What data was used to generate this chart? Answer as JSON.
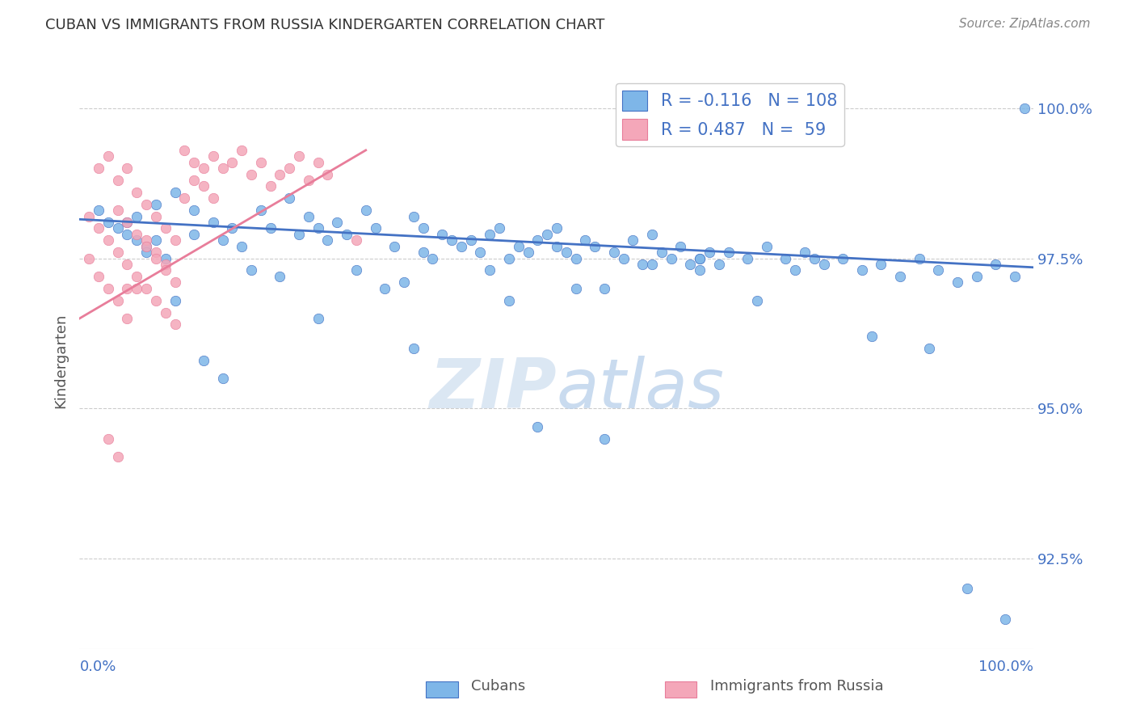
{
  "title": "CUBAN VS IMMIGRANTS FROM RUSSIA KINDERGARTEN CORRELATION CHART",
  "source": "Source: ZipAtlas.com",
  "ylabel": "Kindergarten",
  "yticks": [
    92.5,
    95.0,
    97.5,
    100.0
  ],
  "ytick_labels": [
    "92.5%",
    "95.0%",
    "97.5%",
    "100.0%"
  ],
  "xmin": 0.0,
  "xmax": 1.0,
  "ymin": 91.0,
  "ymax": 100.6,
  "blue_color": "#7EB6E8",
  "pink_color": "#F4A7B9",
  "blue_line_color": "#4472C4",
  "pink_line_color": "#E87D9A",
  "legend_blue_r": "-0.116",
  "legend_blue_n": "108",
  "legend_pink_r": "0.487",
  "legend_pink_n": "59",
  "blue_scatter_x": [
    0.02,
    0.03,
    0.04,
    0.05,
    0.06,
    0.07,
    0.08,
    0.06,
    0.07,
    0.05,
    0.08,
    0.09,
    0.1,
    0.12,
    0.12,
    0.14,
    0.15,
    0.16,
    0.17,
    0.19,
    0.2,
    0.22,
    0.23,
    0.24,
    0.25,
    0.26,
    0.27,
    0.28,
    0.3,
    0.31,
    0.33,
    0.35,
    0.36,
    0.36,
    0.38,
    0.39,
    0.4,
    0.41,
    0.42,
    0.43,
    0.44,
    0.45,
    0.46,
    0.47,
    0.48,
    0.49,
    0.5,
    0.5,
    0.51,
    0.52,
    0.53,
    0.54,
    0.55,
    0.56,
    0.57,
    0.58,
    0.59,
    0.6,
    0.61,
    0.62,
    0.63,
    0.64,
    0.65,
    0.66,
    0.67,
    0.68,
    0.7,
    0.72,
    0.74,
    0.75,
    0.76,
    0.78,
    0.8,
    0.82,
    0.84,
    0.86,
    0.88,
    0.9,
    0.92,
    0.94,
    0.96,
    0.98,
    0.99,
    0.1,
    0.13,
    0.18,
    0.21,
    0.29,
    0.32,
    0.34,
    0.37,
    0.43,
    0.48,
    0.52,
    0.6,
    0.65,
    0.71,
    0.77,
    0.83,
    0.89,
    0.93,
    0.97,
    0.15,
    0.25,
    0.35,
    0.45,
    0.55,
    0.65
  ],
  "blue_scatter_y": [
    98.3,
    98.1,
    98.0,
    97.9,
    97.8,
    97.7,
    97.8,
    98.2,
    97.6,
    98.1,
    98.4,
    97.5,
    98.6,
    98.3,
    97.9,
    98.1,
    97.8,
    98.0,
    97.7,
    98.3,
    98.0,
    98.5,
    97.9,
    98.2,
    98.0,
    97.8,
    98.1,
    97.9,
    98.3,
    98.0,
    97.7,
    98.2,
    97.6,
    98.0,
    97.9,
    97.8,
    97.7,
    97.8,
    97.6,
    97.9,
    98.0,
    97.5,
    97.7,
    97.6,
    97.8,
    97.9,
    97.7,
    98.0,
    97.6,
    97.5,
    97.8,
    97.7,
    94.5,
    97.6,
    97.5,
    97.8,
    97.4,
    97.9,
    97.6,
    97.5,
    97.7,
    97.4,
    97.5,
    97.6,
    97.4,
    97.6,
    97.5,
    97.7,
    97.5,
    97.3,
    97.6,
    97.4,
    97.5,
    97.3,
    97.4,
    97.2,
    97.5,
    97.3,
    97.1,
    97.2,
    97.4,
    97.2,
    100.0,
    96.8,
    95.8,
    97.3,
    97.2,
    97.3,
    97.0,
    97.1,
    97.5,
    97.3,
    94.7,
    97.0,
    97.4,
    97.5,
    96.8,
    97.5,
    96.2,
    96.0,
    92.0,
    91.5,
    95.5,
    96.5,
    96.0,
    96.8,
    97.0,
    97.3
  ],
  "pink_scatter_x": [
    0.01,
    0.02,
    0.02,
    0.03,
    0.03,
    0.04,
    0.04,
    0.05,
    0.05,
    0.06,
    0.06,
    0.07,
    0.07,
    0.08,
    0.08,
    0.09,
    0.09,
    0.1,
    0.1,
    0.11,
    0.11,
    0.12,
    0.12,
    0.13,
    0.13,
    0.14,
    0.14,
    0.15,
    0.16,
    0.17,
    0.18,
    0.19,
    0.2,
    0.21,
    0.22,
    0.23,
    0.24,
    0.25,
    0.26,
    0.01,
    0.02,
    0.03,
    0.04,
    0.05,
    0.06,
    0.07,
    0.08,
    0.09,
    0.29,
    0.04,
    0.05,
    0.06,
    0.07,
    0.08,
    0.09,
    0.1,
    0.03,
    0.04,
    0.05
  ],
  "pink_scatter_y": [
    98.2,
    98.0,
    99.0,
    97.8,
    99.2,
    97.6,
    98.8,
    97.4,
    99.0,
    97.2,
    98.6,
    97.0,
    98.4,
    96.8,
    98.2,
    96.6,
    98.0,
    96.4,
    97.8,
    98.5,
    99.3,
    99.1,
    98.8,
    99.0,
    98.7,
    99.2,
    98.5,
    99.0,
    99.1,
    99.3,
    98.9,
    99.1,
    98.7,
    98.9,
    99.0,
    99.2,
    98.8,
    99.1,
    98.9,
    97.5,
    97.2,
    97.0,
    96.8,
    96.5,
    97.0,
    97.8,
    97.6,
    97.4,
    97.8,
    98.3,
    98.1,
    97.9,
    97.7,
    97.5,
    97.3,
    97.1,
    94.5,
    94.2,
    97.0
  ],
  "blue_line_x": [
    0.0,
    1.0
  ],
  "blue_line_y": [
    98.15,
    97.35
  ],
  "pink_line_x": [
    0.0,
    0.3
  ],
  "pink_line_y": [
    96.5,
    99.3
  ],
  "grid_color": "#CCCCCC",
  "tick_color": "#4472C4",
  "title_color": "#333333",
  "label_color": "#555555",
  "source_color": "#888888"
}
